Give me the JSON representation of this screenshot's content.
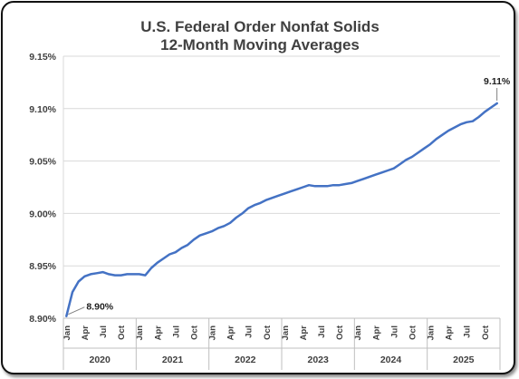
{
  "chart_data": {
    "type": "line",
    "title_lines": [
      "U.S. Federal Order Nonfat Solids",
      "12-Month Moving Averages"
    ],
    "y_ticks": [
      "8.90%",
      "8.95%",
      "9.00%",
      "9.05%",
      "9.10%",
      "9.15%"
    ],
    "ylim": [
      8.9,
      9.15
    ],
    "month_labels": [
      "Jan",
      "Apr",
      "Jul",
      "Oct"
    ],
    "years": [
      "2020",
      "2021",
      "2022",
      "2023",
      "2024",
      "2025"
    ],
    "grid": true,
    "series": [
      {
        "color": "#4472C4",
        "start": "2020-01",
        "values": [
          8.902,
          8.925,
          8.935,
          8.94,
          8.942,
          8.943,
          8.944,
          8.942,
          8.941,
          8.941,
          8.942,
          8.942,
          8.942,
          8.941,
          8.948,
          8.953,
          8.957,
          8.961,
          8.963,
          8.967,
          8.97,
          8.975,
          8.979,
          8.981,
          8.983,
          8.986,
          8.988,
          8.991,
          8.996,
          9.0,
          9.005,
          9.008,
          9.01,
          9.013,
          9.015,
          9.017,
          9.019,
          9.021,
          9.023,
          9.025,
          9.027,
          9.026,
          9.026,
          9.026,
          9.027,
          9.027,
          9.028,
          9.029,
          9.031,
          9.033,
          9.035,
          9.037,
          9.039,
          9.041,
          9.043,
          9.047,
          9.051,
          9.054,
          9.058,
          9.062,
          9.066,
          9.071,
          9.075,
          9.079,
          9.082,
          9.085,
          9.087,
          9.088,
          9.092,
          9.097,
          9.101,
          9.105
        ]
      }
    ],
    "annotations": [
      {
        "text": "8.90%",
        "point": "first"
      },
      {
        "text": "9.11%",
        "point": "last"
      }
    ]
  },
  "colors": {
    "series": "#4472C4",
    "grid": "#D9D9D9",
    "axis_text": "#404040"
  }
}
